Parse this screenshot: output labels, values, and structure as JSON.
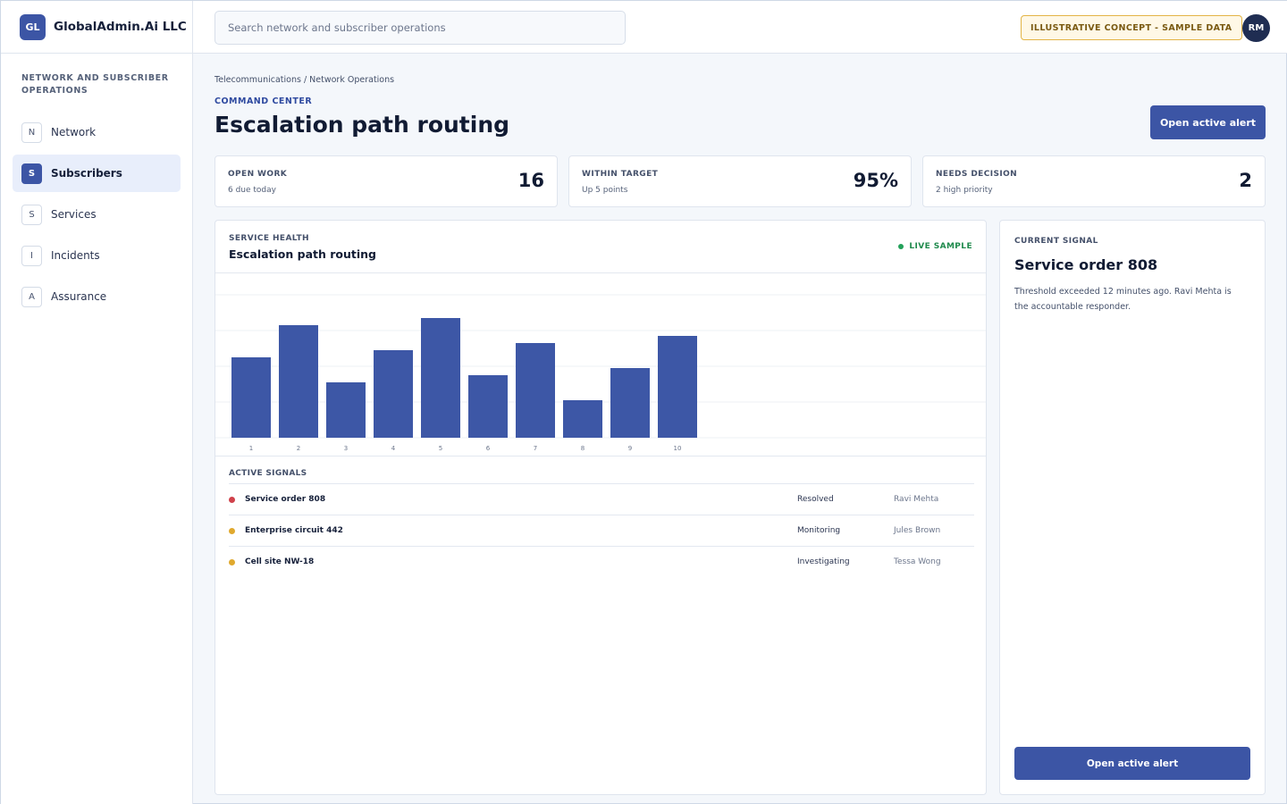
{
  "brand": {
    "logo": "GL",
    "name": "GlobalAdmin.Ai LLC"
  },
  "sidebar": {
    "section_title": "NETWORK AND SUBSCRIBER OPERATIONS",
    "items": [
      {
        "letter": "N",
        "label": "Network",
        "active": false
      },
      {
        "letter": "S",
        "label": "Subscribers",
        "active": true
      },
      {
        "letter": "S",
        "label": "Services",
        "active": false
      },
      {
        "letter": "I",
        "label": "Incidents",
        "active": false
      },
      {
        "letter": "A",
        "label": "Assurance",
        "active": false
      }
    ]
  },
  "header": {
    "search_placeholder": "Search network and subscriber operations",
    "concept_badge": "ILLUSTRATIVE CONCEPT - SAMPLE DATA",
    "avatar_initials": "RM"
  },
  "main": {
    "breadcrumb": "Telecommunications / Network Operations",
    "eyebrow": "COMMAND CENTER",
    "title": "Escalation path routing",
    "primary_button": "Open active alert"
  },
  "kpis": [
    {
      "label": "OPEN WORK",
      "sub": "6 due today",
      "value": "16"
    },
    {
      "label": "WITHIN TARGET",
      "sub": "Up 5 points",
      "value": "95%"
    },
    {
      "label": "NEEDS DECISION",
      "sub": "2 high priority",
      "value": "2"
    }
  ],
  "panel": {
    "eyebrow": "SERVICE HEALTH",
    "title": "Escalation path routing",
    "live_label": "LIVE SAMPLE",
    "signals_label": "ACTIVE SIGNALS",
    "signals": [
      {
        "name": "Service order 808",
        "status": "Resolved",
        "owner": "Ravi Mehta",
        "color": "#d0424b"
      },
      {
        "name": "Enterprise circuit 442",
        "status": "Monitoring",
        "owner": "Jules Brown",
        "color": "#e0a92e"
      },
      {
        "name": "Cell site NW-18",
        "status": "Investigating",
        "owner": "Tessa Wong",
        "color": "#e0a92e"
      }
    ]
  },
  "chart_data": {
    "type": "bar",
    "categories": [
      "1",
      "2",
      "3",
      "4",
      "5",
      "6",
      "7",
      "8",
      "9",
      "10"
    ],
    "values": [
      45,
      63,
      31,
      49,
      67,
      35,
      53,
      21,
      39,
      57
    ],
    "ylim": [
      0,
      90
    ],
    "grid": true,
    "bar_color": "#3d57a6"
  },
  "side_card": {
    "eyebrow": "CURRENT SIGNAL",
    "title": "Service order 808",
    "text": "Threshold exceeded 12 minutes ago. Ravi Mehta is the accountable responder.",
    "button": "Open active alert"
  },
  "colors": {
    "accent": "#3c55a5",
    "live": "#23a15a",
    "badge_border": "#e3b446"
  }
}
